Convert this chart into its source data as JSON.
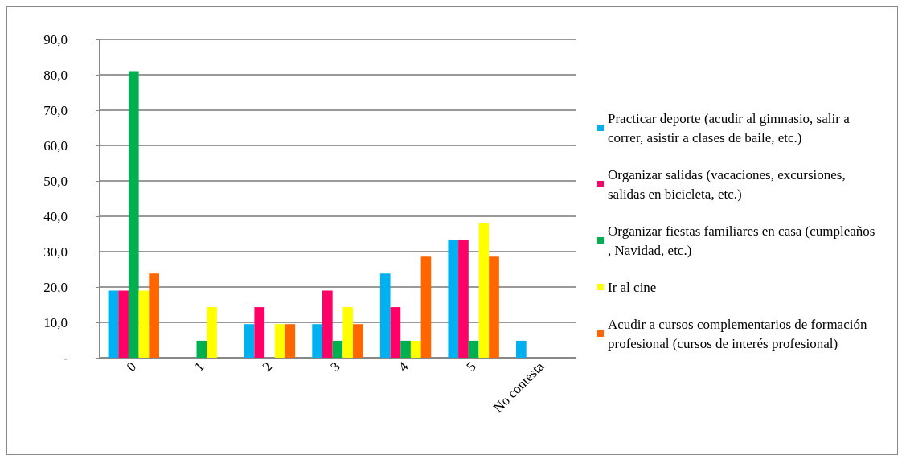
{
  "chart_data": {
    "type": "bar",
    "categories": [
      "0",
      "1",
      "2",
      "3",
      "4",
      "5",
      "No contesta"
    ],
    "series": [
      {
        "name": "Practicar deporte (acudir al gimnasio, salir a correr, asistir a clases de baile, etc.)",
        "color": "#00b0f0",
        "values": [
          19.0,
          0,
          9.5,
          9.5,
          23.8,
          33.3,
          4.8
        ]
      },
      {
        "name": "Organizar salidas (vacaciones, excursiones, salidas en bicicleta, etc.)",
        "color": "#ff0066",
        "values": [
          19.0,
          0,
          14.3,
          19.0,
          14.3,
          33.3,
          null
        ]
      },
      {
        "name": "Organizar fiestas familiares en casa (cumpleaños, Navidad, etc.)",
        "color": "#00b050",
        "values": [
          81.0,
          4.8,
          0,
          4.8,
          4.8,
          4.8,
          null
        ]
      },
      {
        "name": "Ir al cine",
        "color": "#ffff00",
        "values": [
          19.0,
          14.3,
          9.5,
          14.3,
          4.8,
          38.1,
          null
        ]
      },
      {
        "name": "Acudir a cursos complementarios de formación profesional (cursos de interés profesional)",
        "color": "#ff6600",
        "values": [
          23.8,
          0,
          9.5,
          9.5,
          28.6,
          28.6,
          null
        ]
      }
    ],
    "ylim": [
      0,
      90
    ],
    "yticks": [
      {
        "value": 0,
        "label": "-"
      },
      {
        "value": 10,
        "label": "10,0"
      },
      {
        "value": 20,
        "label": "20,0"
      },
      {
        "value": 30,
        "label": "30,0"
      },
      {
        "value": 40,
        "label": "40,0"
      },
      {
        "value": 50,
        "label": "50,0"
      },
      {
        "value": 60,
        "label": "60,0"
      },
      {
        "value": 70,
        "label": "70,0"
      },
      {
        "value": 80,
        "label": "80,0"
      },
      {
        "value": 90,
        "label": "90,0"
      }
    ],
    "grid": "y",
    "legend": "right"
  }
}
